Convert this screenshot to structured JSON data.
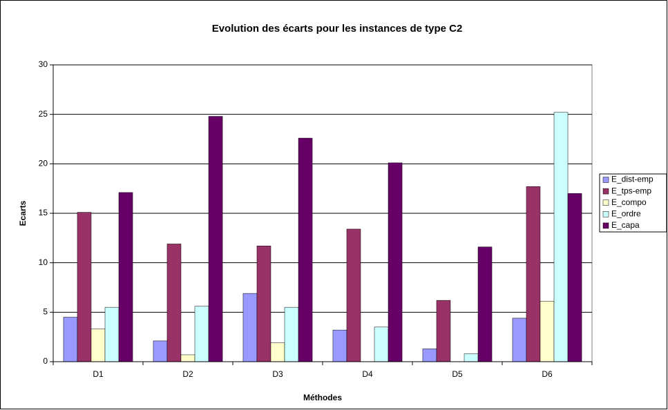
{
  "chart_data": {
    "type": "bar",
    "title": "Evolution des écarts pour les instances de type C2",
    "x_label": "Méthodes",
    "y_label": "Ecarts",
    "categories": [
      "D1",
      "D2",
      "D3",
      "D4",
      "D5",
      "D6"
    ],
    "series": [
      {
        "name": "E_dist-emp",
        "color": "#9999ff",
        "values": [
          4.5,
          2.1,
          6.9,
          3.2,
          1.3,
          4.4
        ]
      },
      {
        "name": "E_tps-emp",
        "color": "#993366",
        "values": [
          15.1,
          11.9,
          11.7,
          13.4,
          6.2,
          17.7
        ]
      },
      {
        "name": "E_compo",
        "color": "#ffffcc",
        "values": [
          3.3,
          0.7,
          1.9,
          0,
          0,
          6.1
        ]
      },
      {
        "name": "E_ordre",
        "color": "#ccffff",
        "values": [
          5.5,
          5.6,
          5.5,
          3.5,
          0.8,
          25.2
        ]
      },
      {
        "name": "E_capa",
        "color": "#660066",
        "values": [
          17.1,
          24.8,
          22.6,
          20.1,
          11.6,
          17.0
        ]
      }
    ],
    "ylim": [
      0,
      30
    ],
    "yticks": [
      0,
      5,
      10,
      15,
      20,
      25,
      30
    ],
    "grid": true,
    "legend": "right"
  }
}
